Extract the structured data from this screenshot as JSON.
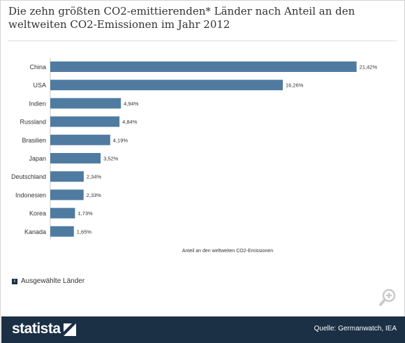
{
  "title": "Die zehn größten CO2-emittierenden* Länder nach Anteil an den weltweiten CO2-Emissionen im Jahr 2012",
  "chart_data": {
    "type": "bar",
    "orientation": "horizontal",
    "categories": [
      "China",
      "USA",
      "Indien",
      "Russland",
      "Brasilien",
      "Japan",
      "Deutschland",
      "Indonesien",
      "Korea",
      "Kanada"
    ],
    "values": [
      21.42,
      16.26,
      4.94,
      4.84,
      4.19,
      3.52,
      2.34,
      2.33,
      1.73,
      1.65
    ],
    "value_labels": [
      "21,42%",
      "16,26%",
      "4,94%",
      "4,84%",
      "4,19%",
      "3,52%",
      "2,34%",
      "2,33%",
      "1,73%",
      "1,65%"
    ],
    "xlabel": "Anteil an den weltweiten CO2-Emissionen",
    "ylabel": "",
    "xlim": [
      0,
      25
    ],
    "grid": false,
    "bar_color": "#4f7ba1"
  },
  "legend": {
    "icon_glyph": "i",
    "label": "Ausgewählte Länder"
  },
  "footer": {
    "logo_text": "statista",
    "source": "Quelle: Germanwatch, IEA",
    "background": "#1b2f45"
  },
  "icons": {
    "zoom": "zoom-in-icon",
    "logo": "statista-logo-icon",
    "legend": "info-icon"
  }
}
